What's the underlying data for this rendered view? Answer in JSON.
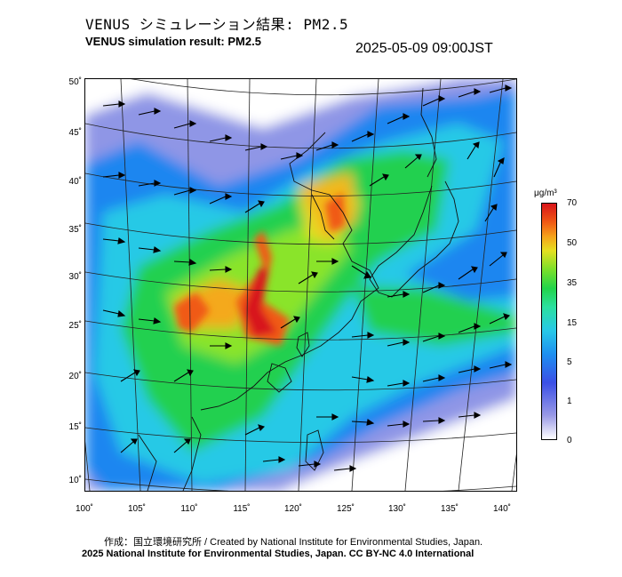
{
  "title_jp": "VENUS シミュレーション結果: PM2.5",
  "title_en": "VENUS simulation result: PM2.5",
  "timestamp": "2025-05-09 09:00JST",
  "lat_labels": [
    "50˚",
    "45˚",
    "40˚",
    "35˚",
    "30˚",
    "25˚",
    "20˚",
    "15˚",
    "10˚"
  ],
  "lon_labels": [
    "100˚",
    "105˚",
    "110˚",
    "115˚",
    "120˚",
    "125˚",
    "130˚",
    "135˚",
    "140˚"
  ],
  "colorbar": {
    "unit": "μg/m³",
    "ticks": [
      "70",
      "50",
      "35",
      "15",
      "5",
      "1",
      "0"
    ],
    "colors": [
      "#ffffff",
      "#9a9ae6",
      "#3b4fe6",
      "#1e8ff0",
      "#27c8e8",
      "#22d44a",
      "#e6e020",
      "#f05a14",
      "#d8141a"
    ]
  },
  "credit_line1": "作成：国立環境研究所 / Created by National Institute for Environmental Studies, Japan.",
  "credit_line2": "2025 National Institute for Environmental Studies, Japan. CC BY-NC 4.0 International"
}
